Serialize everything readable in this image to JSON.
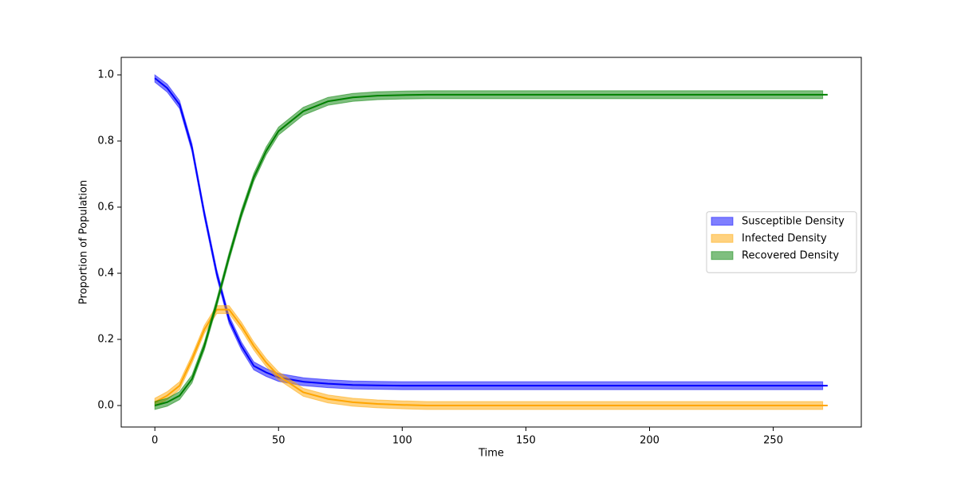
{
  "chart_data": {
    "type": "line",
    "xlabel": "Time",
    "ylabel": "Proportion of Population",
    "x": [
      0,
      5,
      10,
      15,
      20,
      25,
      30,
      35,
      40,
      45,
      50,
      60,
      70,
      80,
      90,
      100,
      110,
      120,
      130,
      140,
      150,
      160,
      170,
      180,
      190,
      200,
      210,
      220,
      230,
      240,
      250,
      260,
      270,
      272
    ],
    "series": [
      {
        "name": "Susceptible Density",
        "color": "#0000ff",
        "values": [
          0.99,
          0.96,
          0.91,
          0.78,
          0.58,
          0.4,
          0.26,
          0.18,
          0.12,
          0.1,
          0.085,
          0.072,
          0.066,
          0.062,
          0.061,
          0.06,
          0.06,
          0.06,
          0.06,
          0.06,
          0.06,
          0.06,
          0.06,
          0.06,
          0.06,
          0.06,
          0.06,
          0.06,
          0.06,
          0.06,
          0.06,
          0.06,
          0.06,
          0.06
        ],
        "lower": [
          0.978,
          0.948,
          0.898,
          0.768,
          0.568,
          0.388,
          0.248,
          0.168,
          0.108,
          0.088,
          0.073,
          0.06,
          0.054,
          0.05,
          0.049,
          0.048,
          0.048,
          0.048,
          0.048,
          0.048,
          0.048,
          0.048,
          0.048,
          0.048,
          0.048,
          0.048,
          0.048,
          0.048,
          0.048,
          0.048,
          0.048,
          0.048,
          0.048,
          null
        ],
        "upper": [
          1.0,
          0.972,
          0.922,
          0.792,
          0.592,
          0.412,
          0.272,
          0.192,
          0.132,
          0.112,
          0.097,
          0.084,
          0.078,
          0.074,
          0.073,
          0.072,
          0.072,
          0.072,
          0.072,
          0.072,
          0.072,
          0.072,
          0.072,
          0.072,
          0.072,
          0.072,
          0.072,
          0.072,
          0.072,
          0.072,
          0.072,
          0.072,
          0.072,
          null
        ]
      },
      {
        "name": "Infected Density",
        "color": "#ffa500",
        "values": [
          0.01,
          0.03,
          0.06,
          0.14,
          0.23,
          0.29,
          0.29,
          0.24,
          0.18,
          0.13,
          0.09,
          0.04,
          0.02,
          0.01,
          0.005,
          0.002,
          0,
          0,
          0,
          0,
          0,
          0,
          0,
          0,
          0,
          0,
          0,
          0,
          0,
          0,
          0,
          0,
          0,
          0
        ],
        "lower": [
          -0.002,
          0.018,
          0.048,
          0.128,
          0.218,
          0.278,
          0.278,
          0.228,
          0.168,
          0.118,
          0.078,
          0.028,
          0.008,
          -0.002,
          -0.007,
          -0.01,
          -0.012,
          -0.012,
          -0.012,
          -0.012,
          -0.012,
          -0.012,
          -0.012,
          -0.012,
          -0.012,
          -0.012,
          -0.012,
          -0.012,
          -0.012,
          -0.012,
          -0.012,
          -0.012,
          -0.012,
          null
        ],
        "upper": [
          0.022,
          0.042,
          0.072,
          0.152,
          0.242,
          0.302,
          0.302,
          0.252,
          0.192,
          0.142,
          0.102,
          0.052,
          0.032,
          0.022,
          0.017,
          0.014,
          0.012,
          0.012,
          0.012,
          0.012,
          0.012,
          0.012,
          0.012,
          0.012,
          0.012,
          0.012,
          0.012,
          0.012,
          0.012,
          0.012,
          0.012,
          0.012,
          0.012,
          null
        ]
      },
      {
        "name": "Recovered Density",
        "color": "#008000",
        "values": [
          0,
          0.01,
          0.03,
          0.08,
          0.18,
          0.31,
          0.45,
          0.58,
          0.69,
          0.77,
          0.83,
          0.89,
          0.92,
          0.932,
          0.937,
          0.939,
          0.94,
          0.94,
          0.94,
          0.94,
          0.94,
          0.94,
          0.94,
          0.94,
          0.94,
          0.94,
          0.94,
          0.94,
          0.94,
          0.94,
          0.94,
          0.94,
          0.94,
          0.94
        ],
        "lower": [
          -0.012,
          -0.002,
          0.018,
          0.068,
          0.168,
          0.298,
          0.438,
          0.568,
          0.678,
          0.758,
          0.818,
          0.878,
          0.908,
          0.92,
          0.925,
          0.927,
          0.928,
          0.928,
          0.928,
          0.928,
          0.928,
          0.928,
          0.928,
          0.928,
          0.928,
          0.928,
          0.928,
          0.928,
          0.928,
          0.928,
          0.928,
          0.928,
          0.928,
          null
        ],
        "upper": [
          0.012,
          0.022,
          0.042,
          0.092,
          0.192,
          0.322,
          0.462,
          0.592,
          0.702,
          0.782,
          0.842,
          0.902,
          0.932,
          0.944,
          0.949,
          0.951,
          0.952,
          0.952,
          0.952,
          0.952,
          0.952,
          0.952,
          0.952,
          0.952,
          0.952,
          0.952,
          0.952,
          0.952,
          0.952,
          0.952,
          0.952,
          0.952,
          0.952,
          null
        ]
      }
    ],
    "xlim": [
      -13.6,
      285.6
    ],
    "xticks": [
      0,
      50,
      100,
      150,
      200,
      250
    ],
    "ylim": [
      -0.065,
      1.053
    ],
    "yticks": [
      {
        "value": 0,
        "label": "0.0"
      },
      0.2,
      0.4,
      0.6,
      0.8,
      {
        "value": 1,
        "label": "1.0"
      }
    ],
    "legend": "right"
  }
}
